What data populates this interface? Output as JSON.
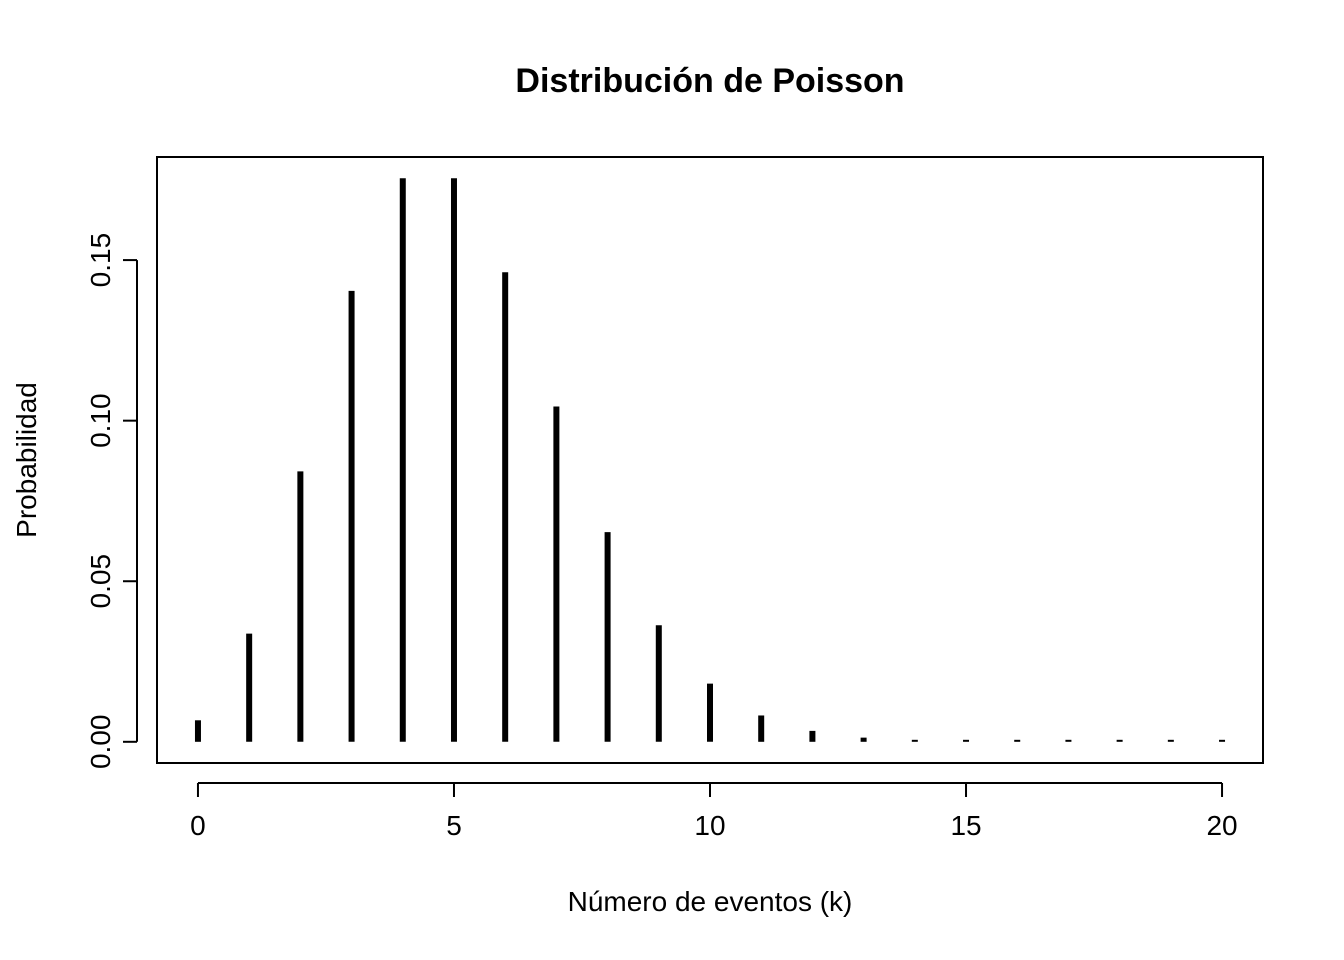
{
  "chart_data": {
    "type": "bar",
    "style": "vertical-lines",
    "title": "Distribución de Poisson",
    "xlabel": "Número de eventos (k)",
    "ylabel": "Probabilidad",
    "x": [
      0,
      1,
      2,
      3,
      4,
      5,
      6,
      7,
      8,
      9,
      10,
      11,
      12,
      13,
      14,
      15,
      16,
      17,
      18,
      19,
      20
    ],
    "values": [
      0.0067,
      0.0337,
      0.0842,
      0.1404,
      0.1755,
      0.1755,
      0.1462,
      0.1044,
      0.0653,
      0.0363,
      0.0181,
      0.0082,
      0.0034,
      0.0013,
      0.0005,
      0.0002,
      0.0001,
      0.0,
      0.0,
      0.0,
      0.0
    ],
    "xlim": [
      -0.8,
      20.8
    ],
    "ylim": [
      -0.0066,
      0.1821
    ],
    "xticks": [
      0,
      5,
      10,
      15,
      20
    ],
    "xtick_labels": [
      "0",
      "5",
      "10",
      "15",
      "20"
    ],
    "yticks": [
      0,
      0.05,
      0.1,
      0.15
    ],
    "ytick_labels": [
      "0.00",
      "0.05",
      "0.10",
      "0.15"
    ],
    "grid": false,
    "color": "#000000"
  }
}
